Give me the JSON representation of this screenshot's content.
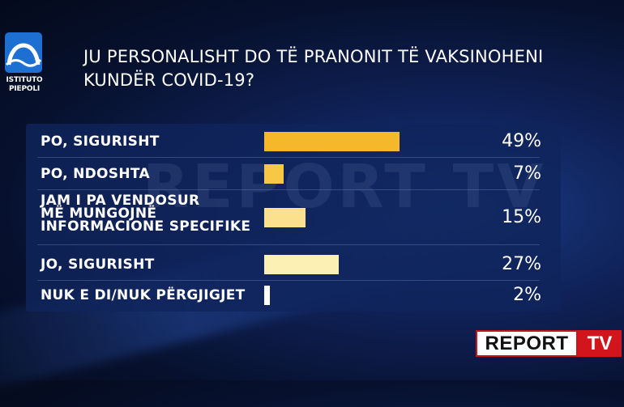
{
  "logo": {
    "line1": "ISTITUTO",
    "line2": "PIEPOLI",
    "icon": "arch-wave-icon",
    "color": "#1d6fd1"
  },
  "title": "JU PERSONALISHT DO TË PRANONIT TË VAKSINOHENI KUNDËR COVID-19?",
  "watermark": "REPORT TV",
  "brand": {
    "report": "REPORT",
    "tv": "TV"
  },
  "chart_data": {
    "type": "bar",
    "orientation": "horizontal",
    "title": "JU PERSONALISHT DO TË PRANONIT TË VAKSINOHENI KUNDËR COVID-19?",
    "categories": [
      "PO, SIGURISHT",
      "PO, NDOSHTA",
      "JAM I PA VENDOSUR\nMË MUNGOJNË\nINFORMACIONE SPECIFIKE",
      "JO, SIGURISHT",
      "NUK E DI/NUK PËRGJIGJET"
    ],
    "values": [
      49,
      7,
      15,
      27,
      2
    ],
    "labels": [
      "49%",
      "7%",
      "15%",
      "27%",
      "2%"
    ],
    "colors": [
      "#f4b82a",
      "#f7c845",
      "#fbe08d",
      "#fdf0b4",
      "#ffffff"
    ],
    "xlim": [
      0,
      100
    ],
    "grid": false
  }
}
